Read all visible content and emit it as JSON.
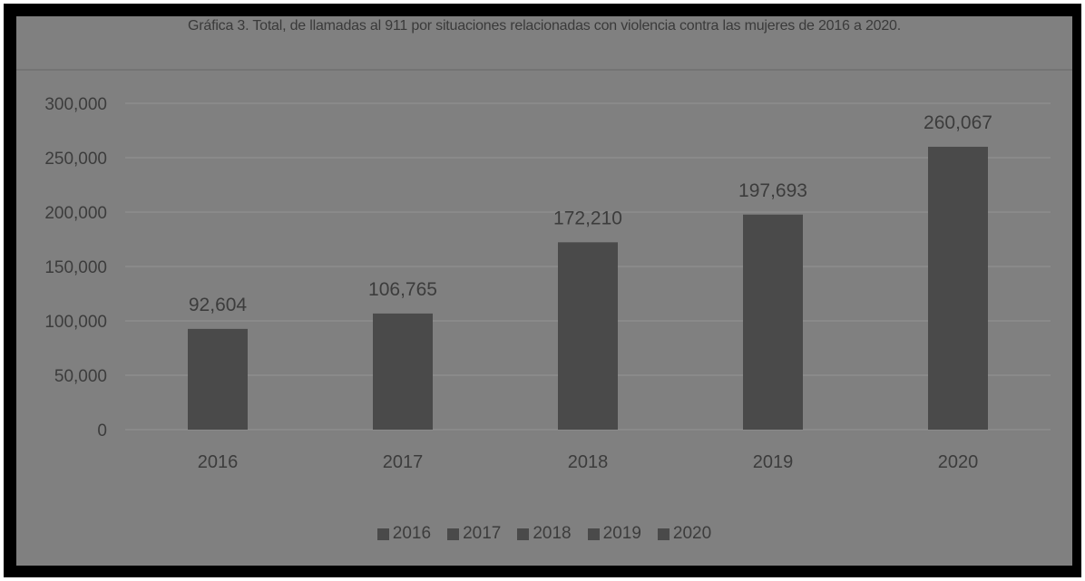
{
  "chart_data": {
    "type": "bar",
    "title": "Gráfica 3. Total, de llamadas al 911 por situaciones relacionadas con violencia contra las mujeres de 2016 a 2020.",
    "categories": [
      "2016",
      "2017",
      "2018",
      "2019",
      "2020"
    ],
    "values": [
      92604,
      106765,
      172210,
      197693,
      260067
    ],
    "value_labels": [
      "92,604",
      "106,765",
      "172,210",
      "197,693",
      "260,067"
    ],
    "ylim": [
      0,
      300000
    ],
    "yticks": [
      0,
      50000,
      100000,
      150000,
      200000,
      250000,
      300000
    ],
    "ytick_labels": [
      "0",
      "50,000",
      "100,000",
      "150,000",
      "200,000",
      "250,000",
      "300,000"
    ],
    "grid": true,
    "legend": {
      "position": "bottom",
      "entries": [
        "2016",
        "2017",
        "2018",
        "2019",
        "2020"
      ]
    },
    "colors": {
      "bar": "#4a4a4a",
      "panel": "#808080",
      "grid": "#8e8e8e",
      "text": "#3c3c3c"
    }
  }
}
